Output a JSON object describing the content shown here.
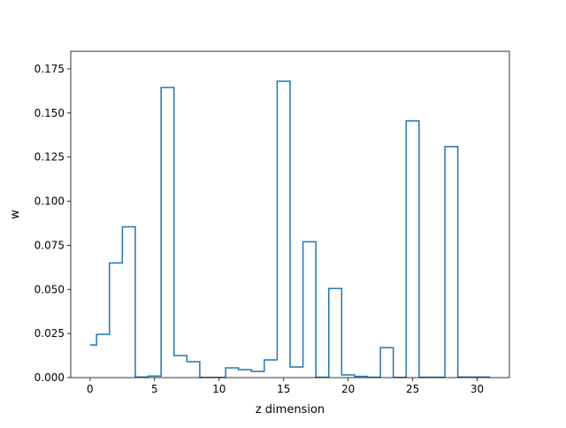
{
  "chart_data": {
    "type": "line",
    "drawstyle": "steps-mid",
    "xlabel": "z dimension",
    "ylabel": "w",
    "xlim": [
      -1.5,
      32.5
    ],
    "ylim": [
      0.0,
      0.185
    ],
    "x_ticks": [
      0,
      5,
      10,
      15,
      20,
      25,
      30
    ],
    "y_ticks": [
      0.0,
      0.025,
      0.05,
      0.075,
      0.1,
      0.125,
      0.15,
      0.175
    ],
    "x_tick_labels": [
      "0",
      "5",
      "10",
      "15",
      "20",
      "25",
      "30"
    ],
    "y_tick_labels": [
      "0.000",
      "0.025",
      "0.050",
      "0.075",
      "0.100",
      "0.125",
      "0.150",
      "0.175"
    ],
    "grid": false,
    "series": [
      {
        "color": "#1f77b4",
        "x": [
          0,
          1,
          2,
          3,
          4,
          5,
          6,
          7,
          8,
          9,
          10,
          11,
          12,
          13,
          14,
          15,
          16,
          17,
          18,
          19,
          20,
          21,
          22,
          23,
          24,
          25,
          26,
          27,
          28,
          29,
          30,
          31
        ],
        "values": [
          0.0185,
          0.0245,
          0.065,
          0.0855,
          0.0003,
          0.0009,
          0.1645,
          0.0125,
          0.009,
          0.0001,
          0.0001,
          0.0055,
          0.0045,
          0.0035,
          0.01,
          0.168,
          0.006,
          0.077,
          0.0002,
          0.0505,
          0.0015,
          0.0007,
          0.0002,
          0.017,
          0.0001,
          0.1455,
          0.0002,
          0.0002,
          0.131,
          0.0003,
          0.0003,
          0.0003
        ]
      }
    ]
  }
}
